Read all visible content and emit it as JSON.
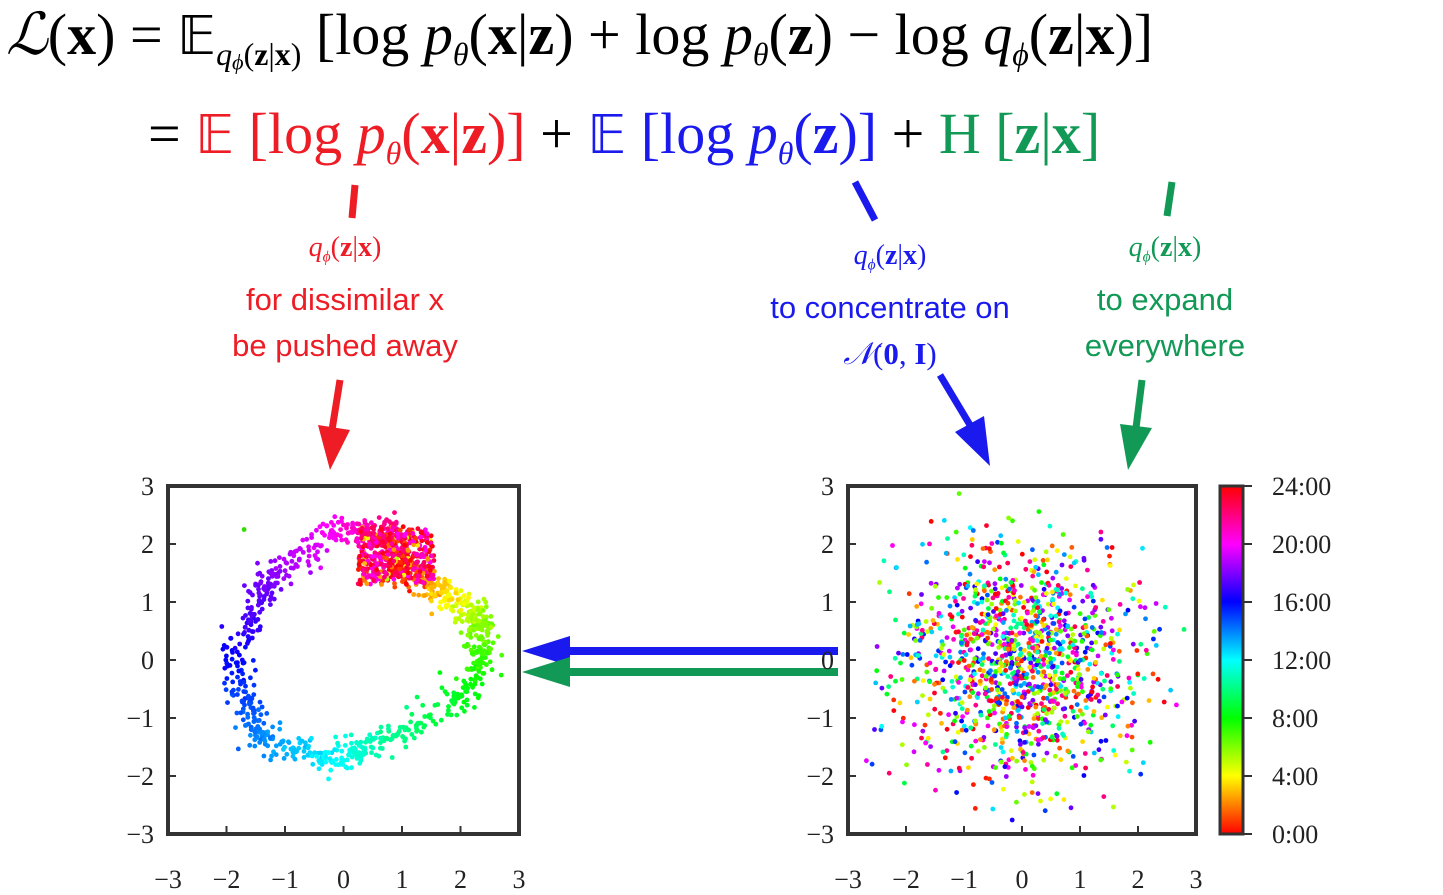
{
  "equation": {
    "line1": {
      "lhs": "ℒ(x)",
      "eq": "=",
      "expectation": "𝔼",
      "subscript": "q_ϕ(z|x)",
      "bracket_open": "[",
      "log1": "log p_θ(x|z)",
      "plus": "+",
      "log2": "log p_θ(z)",
      "minus": "−",
      "log3": "log q_ϕ(z|x)",
      "bracket_close": "]"
    },
    "line2": {
      "eq": "=",
      "term1": "𝔼 [log p_θ(x|z)]",
      "plus1": "+",
      "term2": "𝔼 [log p_θ(z)]",
      "plus2": "+",
      "term3": "H [z|x]"
    }
  },
  "annotations": {
    "red": {
      "q": "q_ϕ(z|x)",
      "line1": "for dissimilar x",
      "line2": "be pushed away",
      "color": "#ee1c25"
    },
    "blue": {
      "q": "q_ϕ(z|x)",
      "line1": "to concentrate on",
      "line2": "𝒩(0, I)",
      "color": "#1a1aee"
    },
    "green": {
      "q": "q_ϕ(z|x)",
      "line1": "to expand",
      "line2": "everywhere",
      "color": "#119955"
    }
  },
  "chart_data": [
    {
      "type": "scatter",
      "description_key": "left",
      "xlim": [
        -3,
        3
      ],
      "ylim": [
        -3,
        3
      ],
      "xticks": [
        "−3",
        "−2",
        "−1",
        "0",
        "1",
        "2",
        "3"
      ],
      "yticks": [
        "−3",
        "−2",
        "−1",
        "0",
        "1",
        "2",
        "3"
      ],
      "color_variable": "time of day (hours)",
      "shape": "ring",
      "ring_path": [
        {
          "t": 0,
          "x": 0.9,
          "y": 1.6
        },
        {
          "t": 3,
          "x": 1.6,
          "y": 1.3
        },
        {
          "t": 6,
          "x": 2.4,
          "y": 0.6
        },
        {
          "t": 8,
          "x": 2.3,
          "y": -0.4
        },
        {
          "t": 10,
          "x": 1.0,
          "y": -1.3
        },
        {
          "t": 12,
          "x": -0.2,
          "y": -1.7
        },
        {
          "t": 14,
          "x": -1.5,
          "y": -1.3
        },
        {
          "t": 16,
          "x": -1.9,
          "y": 0.0
        },
        {
          "t": 18,
          "x": -1.3,
          "y": 1.4
        },
        {
          "t": 20,
          "x": -0.2,
          "y": 2.2
        },
        {
          "t": 22,
          "x": 0.8,
          "y": 2.2
        },
        {
          "t": 24,
          "x": 0.9,
          "y": 1.6
        }
      ],
      "cluster": {
        "x": 0.9,
        "y": 1.8,
        "hours": [
          20,
          24
        ]
      }
    },
    {
      "type": "scatter",
      "description_key": "right",
      "xlim": [
        -3,
        3
      ],
      "ylim": [
        -3,
        3
      ],
      "xticks": [
        "−3",
        "−2",
        "−1",
        "0",
        "1",
        "2",
        "3"
      ],
      "yticks": [
        "−3",
        "−2",
        "−1",
        "0",
        "1",
        "2",
        "3"
      ],
      "color_variable": "time of day (hours)",
      "distribution": "isotropic gaussian",
      "mean": [
        0,
        0
      ],
      "std": 1
    }
  ],
  "colorbar": {
    "ticks": [
      "24:00",
      "20:00",
      "16:00",
      "12:00",
      "8:00",
      "4:00",
      "0:00"
    ],
    "range_hours": [
      0,
      24
    ]
  },
  "colors": {
    "red": "#ee1c25",
    "blue": "#1a1aee",
    "green": "#119955",
    "axis": "#333333"
  }
}
